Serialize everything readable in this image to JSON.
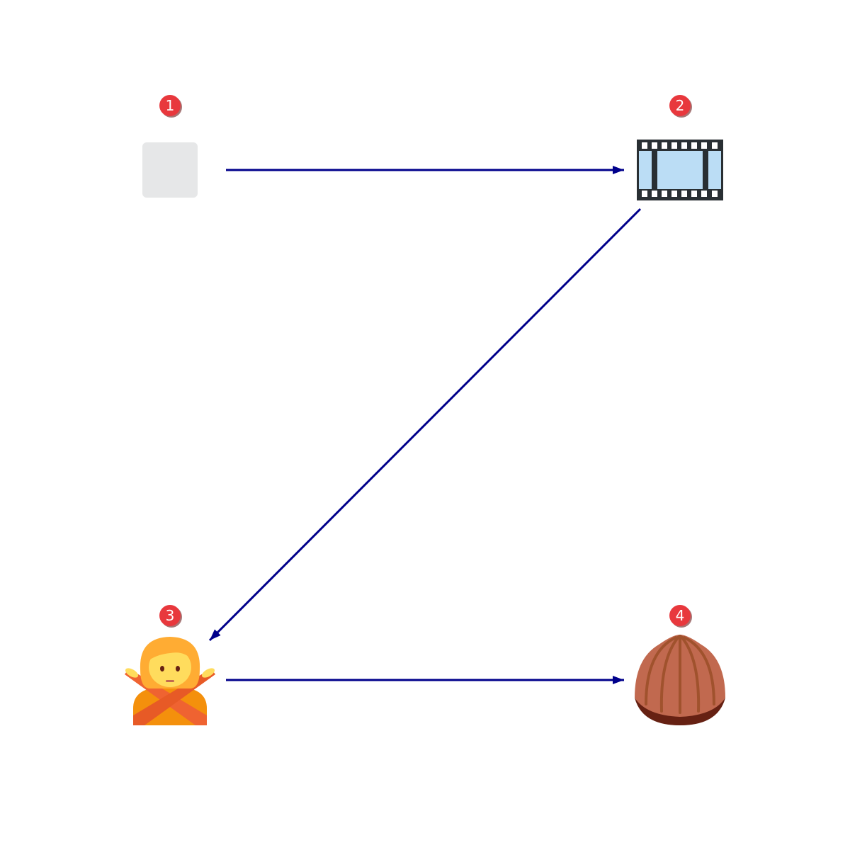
{
  "colors": {
    "background": "#ffffff",
    "edge": "#00008b",
    "badge_fill": "#e8383d",
    "badge_text": "#ffffff"
  },
  "nodes": [
    {
      "id": 1,
      "badge": "1",
      "icon": "blank-tile-icon"
    },
    {
      "id": 2,
      "badge": "2",
      "icon": "film-frames-icon"
    },
    {
      "id": 3,
      "badge": "3",
      "icon": "person-gesturing-no-icon"
    },
    {
      "id": 4,
      "badge": "4",
      "icon": "chestnut-icon"
    }
  ],
  "edges": [
    {
      "from": 1,
      "to": 2
    },
    {
      "from": 2,
      "to": 3
    },
    {
      "from": 3,
      "to": 4
    }
  ]
}
